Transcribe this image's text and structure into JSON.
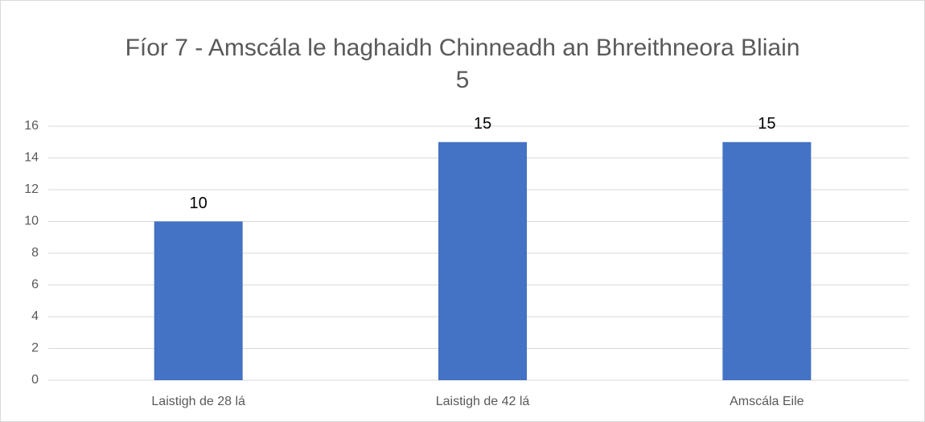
{
  "chart_data": {
    "type": "bar",
    "title": "Fíor 7 - Amscála le haghaidh Chinneadh an Bhreithneora Bliain 5",
    "categories": [
      "Laistigh de 28 lá",
      "Laistigh de 42 lá",
      "Amscála Eile"
    ],
    "values": [
      10,
      15,
      15
    ],
    "color": "#4472c4",
    "ylim": [
      0,
      16
    ],
    "yticks": [
      0,
      2,
      4,
      6,
      8,
      10,
      12,
      14,
      16
    ],
    "grid": true,
    "data_labels": true
  }
}
